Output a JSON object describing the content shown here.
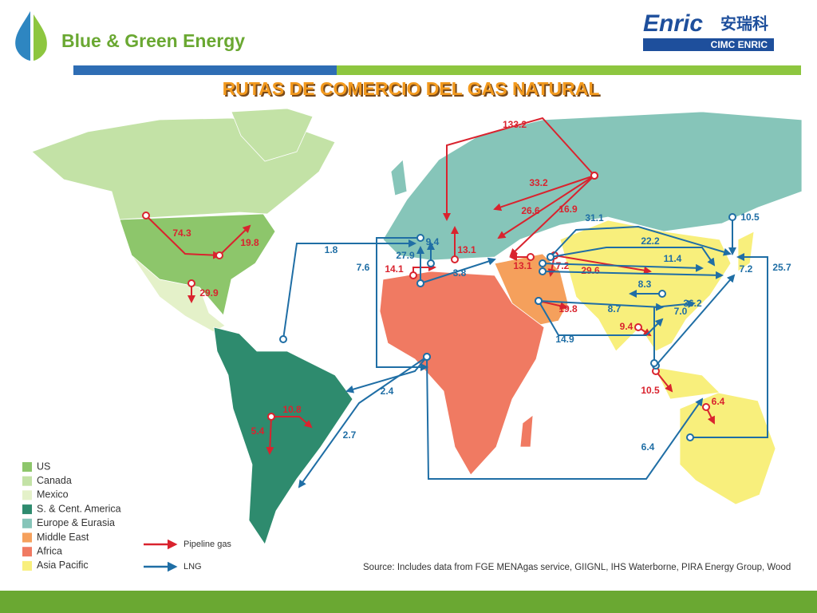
{
  "header": {
    "brand": "Blue & Green Energy",
    "logo_text": "Enric",
    "logo_chinese": "安瑞科",
    "logo_sub": "CIMC ENRIC"
  },
  "title": "RUTAS DE COMERCIO DEL GAS NATURAL",
  "map": {
    "route_colors": {
      "pipeline": "#d9232e",
      "lng": "#1f6ea5"
    },
    "flows": [
      {
        "label": "133.2",
        "kind": "pipeline"
      },
      {
        "label": "33.2",
        "kind": "pipeline"
      },
      {
        "label": "26.6",
        "kind": "pipeline"
      },
      {
        "label": "16.9",
        "kind": "pipeline"
      },
      {
        "label": "13.1",
        "kind": "pipeline"
      },
      {
        "label": "13.1",
        "kind": "pipeline"
      },
      {
        "label": "7.2",
        "kind": "pipeline"
      },
      {
        "label": "29.6",
        "kind": "pipeline"
      },
      {
        "label": "14.1",
        "kind": "pipeline"
      },
      {
        "label": "19.8",
        "kind": "pipeline"
      },
      {
        "label": "9.4",
        "kind": "pipeline"
      },
      {
        "label": "10.5",
        "kind": "pipeline"
      },
      {
        "label": "6.4",
        "kind": "pipeline"
      },
      {
        "label": "74.3",
        "kind": "pipeline"
      },
      {
        "label": "19.8",
        "kind": "pipeline"
      },
      {
        "label": "29.9",
        "kind": "pipeline"
      },
      {
        "label": "10.8",
        "kind": "pipeline"
      },
      {
        "label": "5.4",
        "kind": "pipeline"
      },
      {
        "label": "31.1",
        "kind": "lng"
      },
      {
        "label": "10.5",
        "kind": "lng"
      },
      {
        "label": "22.2",
        "kind": "lng"
      },
      {
        "label": "11.4",
        "kind": "lng"
      },
      {
        "label": "7.2",
        "kind": "lng"
      },
      {
        "label": "25.7",
        "kind": "lng"
      },
      {
        "label": "8.3",
        "kind": "lng"
      },
      {
        "label": "36.2",
        "kind": "lng"
      },
      {
        "label": "8.7",
        "kind": "lng"
      },
      {
        "label": "7.0",
        "kind": "lng"
      },
      {
        "label": "14.9",
        "kind": "lng"
      },
      {
        "label": "1.8",
        "kind": "lng"
      },
      {
        "label": "9.4",
        "kind": "lng"
      },
      {
        "label": "27.9",
        "kind": "lng"
      },
      {
        "label": "7.6",
        "kind": "lng"
      },
      {
        "label": "3.8",
        "kind": "lng"
      },
      {
        "label": "2.4",
        "kind": "lng"
      },
      {
        "label": "2.7",
        "kind": "lng"
      },
      {
        "label": "6.4",
        "kind": "lng"
      }
    ],
    "legend": {
      "regions": [
        {
          "name": "US",
          "color": "#8dc66b"
        },
        {
          "name": "Canada",
          "color": "#c3e2a6"
        },
        {
          "name": "Mexico",
          "color": "#e4f1c9"
        },
        {
          "name": "S. & Cent. America",
          "color": "#2e8b6e"
        },
        {
          "name": "Europe & Eurasia",
          "color": "#86c5b9"
        },
        {
          "name": "Middle East",
          "color": "#f5a05c"
        },
        {
          "name": "Africa",
          "color": "#f07a62"
        },
        {
          "name": "Asia Pacific",
          "color": "#f8ef7c"
        }
      ],
      "routes": [
        {
          "name": "Pipeline gas",
          "kind": "pipeline"
        },
        {
          "name": "LNG",
          "kind": "lng"
        }
      ]
    }
  },
  "source": "Source: Includes data from FGE MENAgas service, GIIGNL, IHS Waterborne, PIRA Energy Group, Wood"
}
